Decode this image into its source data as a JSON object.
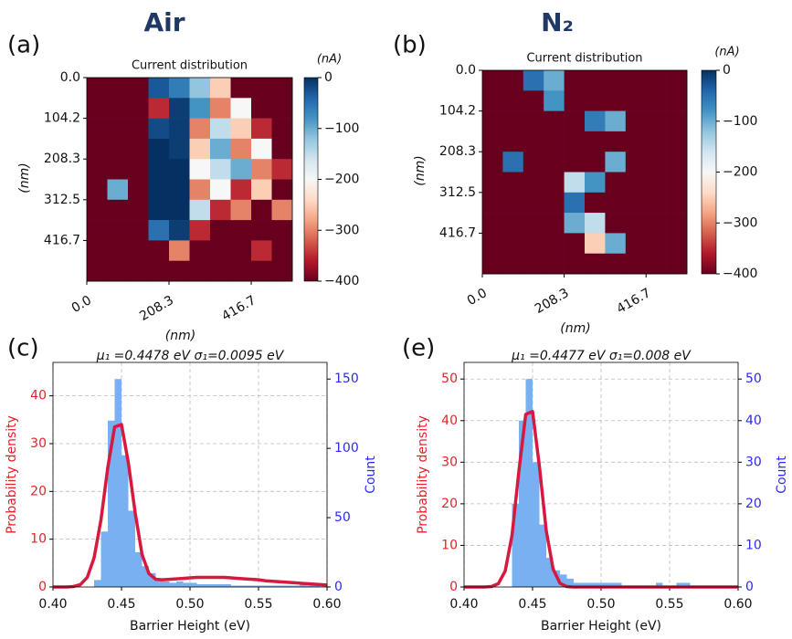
{
  "chart_data": [
    {
      "type": "heatmap",
      "panel_label": "(a)",
      "header": "Air",
      "title": "Current distribution",
      "xlabel": "(nm)",
      "ylabel": "(nm)",
      "colorbar_label": "(nA)",
      "xlim": [
        0,
        520.8
      ],
      "ylim": [
        520.8,
        0
      ],
      "xticks": [
        {
          "value": 0,
          "label": "0.0"
        },
        208.3,
        416.7
      ],
      "yticks": [
        {
          "value": 0,
          "label": "0.0"
        },
        104.2,
        208.3,
        312.5,
        416.7
      ],
      "zlim": [
        -400,
        0
      ],
      "zticks": [
        {
          "value": -400,
          "label": "−400"
        },
        {
          "value": -300,
          "label": "−300"
        },
        {
          "value": -200,
          "label": "−200"
        },
        {
          "value": -100,
          "label": "−100"
        },
        0
      ],
      "colormap": [
        "#67001f",
        "#b2182b",
        "#d6604d",
        "#f4a582",
        "#fddbc7",
        "#f7f7f7",
        "#d1e5f0",
        "#92c5de",
        "#4393c3",
        "#2166ac",
        "#053061"
      ],
      "z": [
        [
          -400,
          -400,
          -400,
          -30,
          -60,
          -120,
          -250,
          -400,
          -400,
          -400
        ],
        [
          -400,
          -400,
          -400,
          -350,
          -10,
          -80,
          -300,
          -200,
          -400,
          -400
        ],
        [
          -400,
          -400,
          -400,
          -20,
          -10,
          -300,
          -150,
          -250,
          -350,
          -400
        ],
        [
          -400,
          -400,
          -400,
          0,
          -10,
          -250,
          -100,
          -300,
          -200,
          -400
        ],
        [
          -400,
          -400,
          -400,
          0,
          0,
          -200,
          -150,
          -100,
          -300,
          -350
        ],
        [
          -400,
          -100,
          -400,
          0,
          0,
          -300,
          -200,
          -350,
          -250,
          -400
        ],
        [
          -400,
          -400,
          -400,
          0,
          0,
          -150,
          -350,
          -300,
          -400,
          -300
        ],
        [
          -400,
          -400,
          -400,
          -50,
          -10,
          -350,
          -400,
          -400,
          -400,
          -400
        ],
        [
          -400,
          -400,
          -400,
          -400,
          -300,
          -400,
          -400,
          -400,
          -350,
          -400
        ],
        [
          -400,
          -400,
          -400,
          -400,
          -400,
          -400,
          -400,
          -400,
          -400,
          -400
        ]
      ]
    },
    {
      "type": "heatmap",
      "panel_label": "(b)",
      "header": "N₂",
      "title": "Current distribution",
      "xlabel": "(nm)",
      "ylabel": "(nm)",
      "colorbar_label": "(nA)",
      "xlim": [
        0,
        520.8
      ],
      "ylim": [
        520.8,
        0
      ],
      "xticks": [
        {
          "value": 0,
          "label": "0.0"
        },
        208.3,
        416.7
      ],
      "yticks": [
        {
          "value": 0,
          "label": "0.0"
        },
        104.2,
        208.3,
        312.5,
        416.7
      ],
      "zlim": [
        -400,
        0
      ],
      "zticks": [
        {
          "value": -400,
          "label": "−400"
        },
        {
          "value": -300,
          "label": "−300"
        },
        {
          "value": -200,
          "label": "−200"
        },
        {
          "value": -100,
          "label": "−100"
        },
        0
      ],
      "colormap": [
        "#67001f",
        "#b2182b",
        "#d6604d",
        "#f4a582",
        "#fddbc7",
        "#f7f7f7",
        "#d1e5f0",
        "#92c5de",
        "#4393c3",
        "#2166ac",
        "#053061"
      ],
      "z": [
        [
          -400,
          -400,
          -50,
          -100,
          -400,
          -400,
          -400,
          -400,
          -400,
          -400
        ],
        [
          -400,
          -400,
          -400,
          -80,
          -400,
          -400,
          -400,
          -400,
          -400,
          -400
        ],
        [
          -400,
          -400,
          -400,
          -400,
          -400,
          -60,
          -100,
          -400,
          -400,
          -400
        ],
        [
          -400,
          -400,
          -400,
          -400,
          -400,
          -400,
          -400,
          -400,
          -400,
          -400
        ],
        [
          -400,
          -50,
          -400,
          -400,
          -400,
          -400,
          -100,
          -400,
          -400,
          -400
        ],
        [
          -400,
          -400,
          -400,
          -400,
          -150,
          -80,
          -400,
          -400,
          -400,
          -400
        ],
        [
          -400,
          -400,
          -400,
          -400,
          -50,
          -400,
          -400,
          -400,
          -400,
          -400
        ],
        [
          -400,
          -400,
          -400,
          -400,
          -100,
          -150,
          -400,
          -400,
          -400,
          -400
        ],
        [
          -400,
          -400,
          -400,
          -400,
          -400,
          -250,
          -100,
          -400,
          -400,
          -400
        ],
        [
          -400,
          -400,
          -400,
          -400,
          -400,
          -400,
          -400,
          -400,
          -400,
          -400
        ]
      ]
    },
    {
      "type": "histogram",
      "panel_label": "(c)",
      "title": "μ₁ =0.4478 eV σ₁=0.0095 eV",
      "xlabel": "Barrier Height (eV)",
      "ylabel": "Probability density",
      "y2label": "Count",
      "xlim": [
        0.4,
        0.6
      ],
      "xticks": [
        {
          "value": 0.4,
          "label": "0.40"
        },
        0.45,
        {
          "value": 0.5,
          "label": "0.50"
        },
        0.55,
        {
          "value": 0.6,
          "label": "0.60"
        }
      ],
      "ylim": [
        0,
        47
      ],
      "yticks": [
        0,
        10,
        20,
        30,
        40
      ],
      "y2lim": [
        0,
        162
      ],
      "y2ticks": [
        0,
        50,
        100,
        150
      ],
      "grid": true,
      "ylabel_color": "#e8202a",
      "y2label_color": "#2a2af0",
      "bins": [
        0.43,
        0.435,
        0.44,
        0.445,
        0.45,
        0.455,
        0.46,
        0.465,
        0.47,
        0.475,
        0.48,
        0.485,
        0.49,
        0.495,
        0.5,
        0.505,
        0.51,
        0.515,
        0.52,
        0.525,
        0.53,
        0.535,
        0.54,
        0.545,
        0.55,
        0.555,
        0.56,
        0.565,
        0.57,
        0.575,
        0.58,
        0.585,
        0.59,
        0.595,
        0.6
      ],
      "counts": [
        5,
        40,
        120,
        150,
        95,
        55,
        25,
        15,
        10,
        5,
        4,
        3,
        4,
        3,
        3,
        2,
        2,
        2,
        2,
        2,
        1,
        1,
        1,
        1,
        1,
        1,
        1,
        1,
        1,
        1,
        2,
        1,
        1,
        0
      ],
      "counts_color": "#79b0f2",
      "density": {
        "color": "#d7193f",
        "x": [
          0.4,
          0.405,
          0.41,
          0.415,
          0.42,
          0.425,
          0.43,
          0.435,
          0.44,
          0.445,
          0.45,
          0.455,
          0.46,
          0.465,
          0.47,
          0.475,
          0.48,
          0.485,
          0.49,
          0.495,
          0.5,
          0.505,
          0.51,
          0.515,
          0.52,
          0.525,
          0.53,
          0.535,
          0.54,
          0.545,
          0.55,
          0.555,
          0.56,
          0.565,
          0.57,
          0.575,
          0.58,
          0.585,
          0.59,
          0.595,
          0.6
        ],
        "values": [
          0,
          0,
          0,
          0.1,
          0.5,
          2,
          6.1,
          14,
          25,
          33.5,
          34,
          26,
          15.5,
          6.8,
          2.8,
          1.6,
          1.5,
          1.6,
          1.7,
          1.8,
          1.9,
          2,
          2,
          2,
          2,
          2,
          1.9,
          1.8,
          1.7,
          1.6,
          1.5,
          1.3,
          1.2,
          1.1,
          1,
          0.9,
          0.8,
          0.7,
          0.6,
          0.5,
          0.4
        ]
      }
    },
    {
      "type": "histogram",
      "panel_label": "(e)",
      "title": "μ₁ =0.4477 eV σ₁=0.008 eV",
      "xlabel": "Barrier Height (eV)",
      "ylabel": "Probability density",
      "y2label": "Count",
      "xlim": [
        0.4,
        0.6
      ],
      "xticks": [
        {
          "value": 0.4,
          "label": "0.40"
        },
        0.45,
        {
          "value": 0.5,
          "label": "0.50"
        },
        0.55,
        {
          "value": 0.6,
          "label": "0.60"
        }
      ],
      "ylim": [
        0,
        54
      ],
      "yticks": [
        0,
        10,
        20,
        30,
        40,
        50
      ],
      "y2lim": [
        0,
        54
      ],
      "y2ticks": [
        0,
        10,
        20,
        30,
        40,
        50
      ],
      "grid": true,
      "ylabel_color": "#e8202a",
      "y2label_color": "#2a2af0",
      "bins": [
        0.43,
        0.435,
        0.44,
        0.445,
        0.45,
        0.455,
        0.46,
        0.465,
        0.47,
        0.475,
        0.48,
        0.485,
        0.49,
        0.495,
        0.5,
        0.505,
        0.51,
        0.515,
        0.52,
        0.525,
        0.53,
        0.535,
        0.54,
        0.545,
        0.55,
        0.555,
        0.56,
        0.565,
        0.57,
        0.575,
        0.58,
        0.585,
        0.59,
        0.595,
        0.6
      ],
      "counts": [
        0,
        20,
        40,
        50,
        30,
        15,
        7,
        4,
        3,
        2,
        1,
        1,
        1,
        1,
        1,
        1,
        1,
        0,
        0,
        0,
        0,
        0,
        1,
        0,
        0,
        1,
        1,
        0,
        0,
        0,
        0,
        0,
        0,
        0
      ],
      "counts_color": "#79b0f2",
      "density": {
        "color": "#d7193f",
        "x": [
          0.4,
          0.405,
          0.41,
          0.415,
          0.42,
          0.425,
          0.43,
          0.435,
          0.44,
          0.445,
          0.45,
          0.455,
          0.46,
          0.465,
          0.47,
          0.475,
          0.48,
          0.485,
          0.49,
          0.495,
          0.5,
          0.505,
          0.51,
          0.515,
          0.52,
          0.525,
          0.53,
          0.535,
          0.54,
          0.545,
          0.55,
          0.555,
          0.56,
          0.565,
          0.57,
          0.575,
          0.58,
          0.585,
          0.59,
          0.595,
          0.6
        ],
        "values": [
          0,
          0,
          0,
          0,
          0.1,
          0.8,
          3.8,
          12.4,
          27.8,
          41.5,
          42.2,
          29,
          13.5,
          4.3,
          0.9,
          0.1,
          0,
          0,
          0,
          0,
          0,
          0,
          0,
          0,
          0,
          0,
          0,
          0,
          0,
          0,
          0,
          0,
          0,
          0,
          0,
          0,
          0,
          0,
          0,
          0,
          0
        ]
      }
    }
  ]
}
